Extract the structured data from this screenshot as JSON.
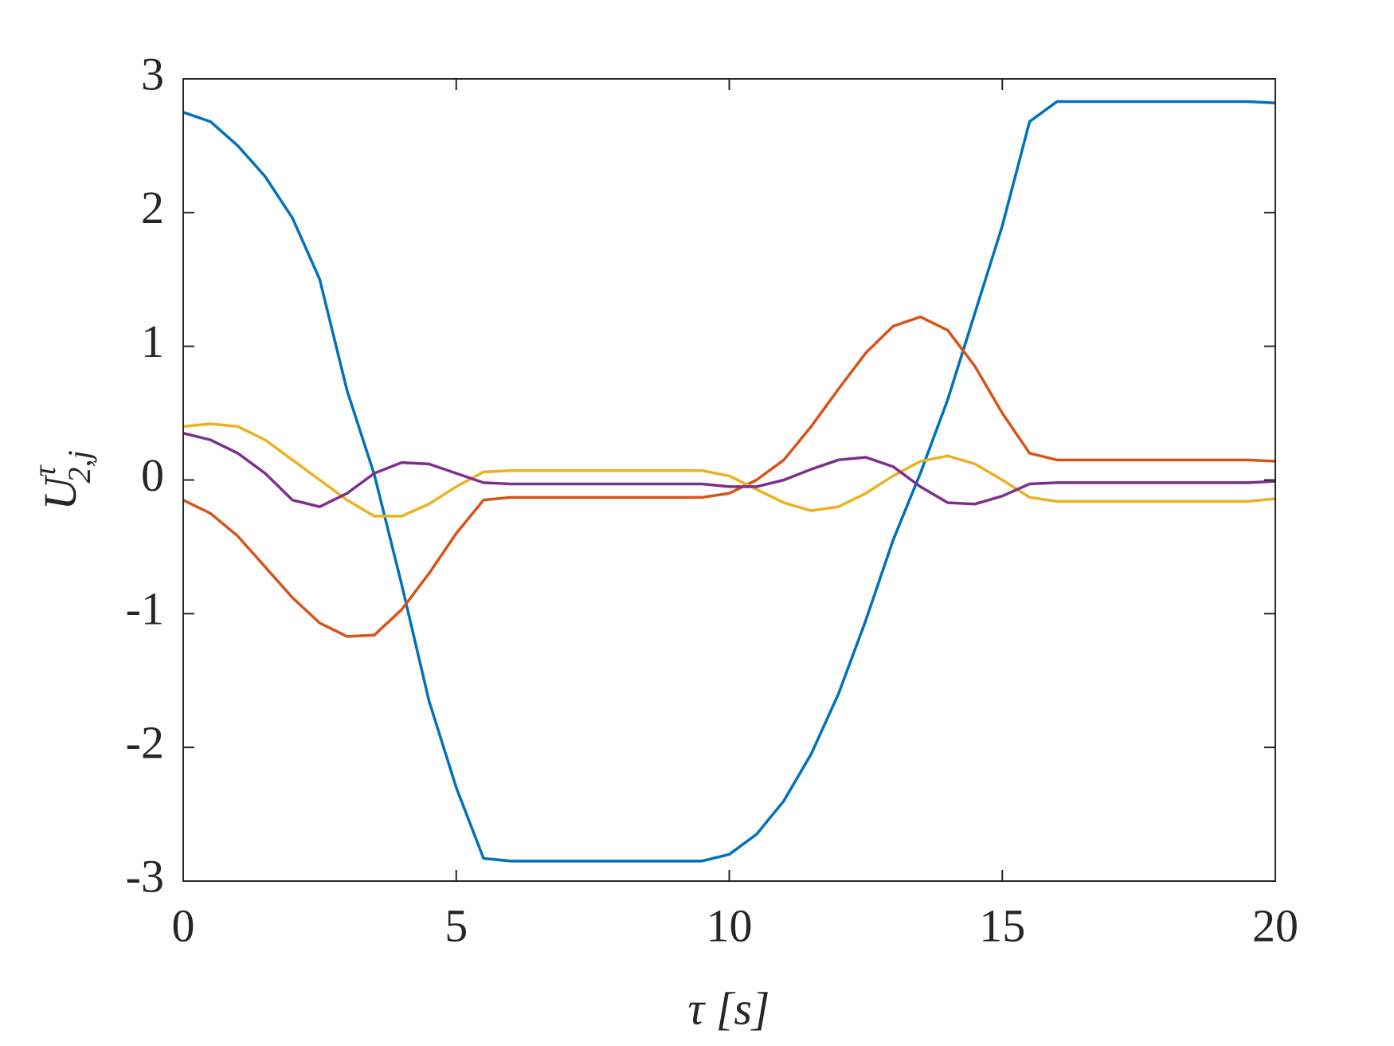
{
  "chart_data": {
    "type": "line",
    "xlabel": "τ [s]",
    "ylabel": {
      "base": "U",
      "sup": "τ",
      "sub": "2,j"
    },
    "x": [
      0,
      0.5,
      1,
      1.5,
      2,
      2.5,
      3,
      3.5,
      4,
      4.5,
      5,
      5.5,
      6,
      6.5,
      7,
      7.5,
      8,
      8.5,
      9,
      9.5,
      10,
      10.5,
      11,
      11.5,
      12,
      12.5,
      13,
      13.5,
      14,
      14.5,
      15,
      15.5,
      16,
      16.5,
      17,
      17.5,
      18,
      18.5,
      19,
      19.5,
      20
    ],
    "series": [
      {
        "color": "#0072BD",
        "values": [
          2.75,
          2.68,
          2.5,
          2.27,
          1.96,
          1.5,
          0.67,
          0.04,
          -0.78,
          -1.65,
          -2.3,
          -2.83,
          -2.85,
          -2.85,
          -2.85,
          -2.85,
          -2.85,
          -2.85,
          -2.85,
          -2.85,
          -2.8,
          -2.65,
          -2.4,
          -2.05,
          -1.6,
          -1.05,
          -0.45,
          0.05,
          0.6,
          1.25,
          1.9,
          2.68,
          2.83,
          2.83,
          2.83,
          2.83,
          2.83,
          2.83,
          2.83,
          2.83,
          2.82
        ]
      },
      {
        "color": "#D95319",
        "values": [
          -0.15,
          -0.25,
          -0.42,
          -0.65,
          -0.88,
          -1.07,
          -1.17,
          -1.16,
          -0.97,
          -0.7,
          -0.4,
          -0.15,
          -0.13,
          -0.13,
          -0.13,
          -0.13,
          -0.13,
          -0.13,
          -0.13,
          -0.13,
          -0.1,
          0.0,
          0.15,
          0.4,
          0.68,
          0.95,
          1.15,
          1.22,
          1.12,
          0.85,
          0.5,
          0.2,
          0.15,
          0.15,
          0.15,
          0.15,
          0.15,
          0.15,
          0.15,
          0.15,
          0.14
        ]
      },
      {
        "color": "#EDB120",
        "values": [
          0.4,
          0.42,
          0.4,
          0.3,
          0.15,
          0.0,
          -0.15,
          -0.27,
          -0.27,
          -0.18,
          -0.05,
          0.06,
          0.07,
          0.07,
          0.07,
          0.07,
          0.07,
          0.07,
          0.07,
          0.07,
          0.03,
          -0.07,
          -0.17,
          -0.23,
          -0.2,
          -0.1,
          0.03,
          0.14,
          0.18,
          0.12,
          0.0,
          -0.13,
          -0.16,
          -0.16,
          -0.16,
          -0.16,
          -0.16,
          -0.16,
          -0.16,
          -0.16,
          -0.14
        ]
      },
      {
        "color": "#7E2F8E",
        "values": [
          0.35,
          0.3,
          0.2,
          0.05,
          -0.15,
          -0.2,
          -0.1,
          0.05,
          0.13,
          0.12,
          0.05,
          -0.02,
          -0.03,
          -0.03,
          -0.03,
          -0.03,
          -0.03,
          -0.03,
          -0.03,
          -0.03,
          -0.05,
          -0.05,
          0.0,
          0.08,
          0.15,
          0.17,
          0.1,
          -0.05,
          -0.17,
          -0.18,
          -0.12,
          -0.03,
          -0.02,
          -0.02,
          -0.02,
          -0.02,
          -0.02,
          -0.02,
          -0.02,
          -0.02,
          -0.01
        ]
      }
    ],
    "xlim": [
      0,
      20
    ],
    "xticks": [
      0,
      5,
      10,
      15,
      20
    ],
    "ylim": [
      -3,
      3
    ],
    "yticks": [
      -3,
      -2,
      -1,
      0,
      1,
      2,
      3
    ]
  }
}
